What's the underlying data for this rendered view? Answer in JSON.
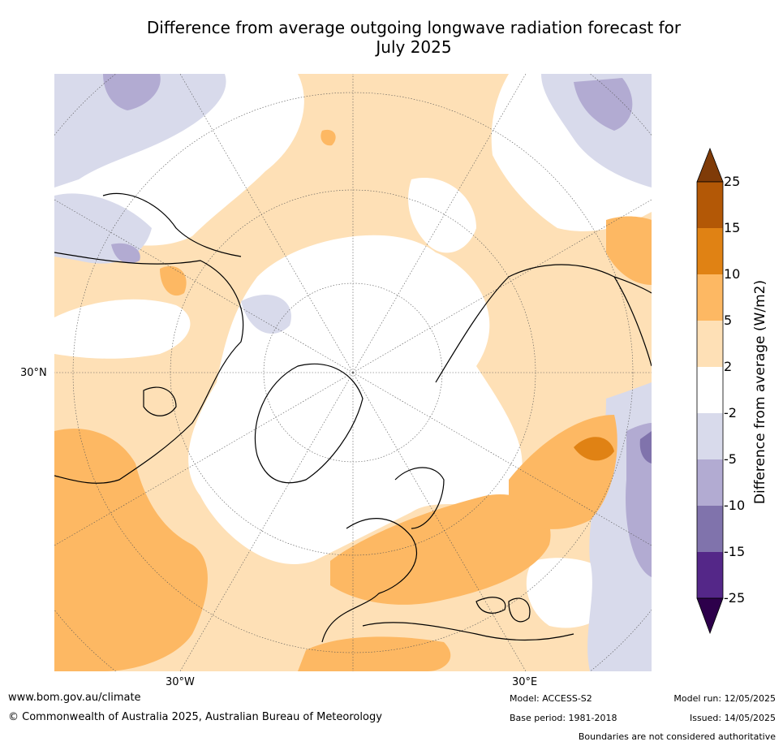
{
  "title_line1": "Difference from average outgoing longwave radiation forecast for",
  "title_line2": "July 2025",
  "map": {
    "lat_label": "30°N",
    "lon_label_left": "30°W",
    "lon_label_right": "30°E"
  },
  "colorbar": {
    "label": "Difference from average (W/m2)",
    "ticks": [
      "25",
      "15",
      "10",
      "5",
      "2",
      "-2",
      "-5",
      "-10",
      "-15",
      "-25"
    ],
    "colors": {
      "over": "#7f3b08",
      "b15_25": "#b35806",
      "b10_15": "#e08214",
      "b5_10": "#fdb863",
      "b2_5": "#fee0b6",
      "neutral": "#ffffff",
      "bm5_m2": "#d8daeb",
      "bm10_m5": "#b2abd2",
      "bm15_m10": "#8073ac",
      "bm25_m15": "#542788",
      "under": "#2d004b"
    }
  },
  "footer": {
    "website": "www.bom.gov.au/climate",
    "copyright": "© Commonwealth of Australia 2025, Australian Bureau of Meteorology",
    "model": "Model: ACCESS-S2",
    "base_period": "Base period: 1981-2018",
    "model_run": "Model run: 12/05/2025",
    "issued": "Issued: 14/05/2025",
    "disclaimer": "Boundaries are not considered authoritative"
  }
}
